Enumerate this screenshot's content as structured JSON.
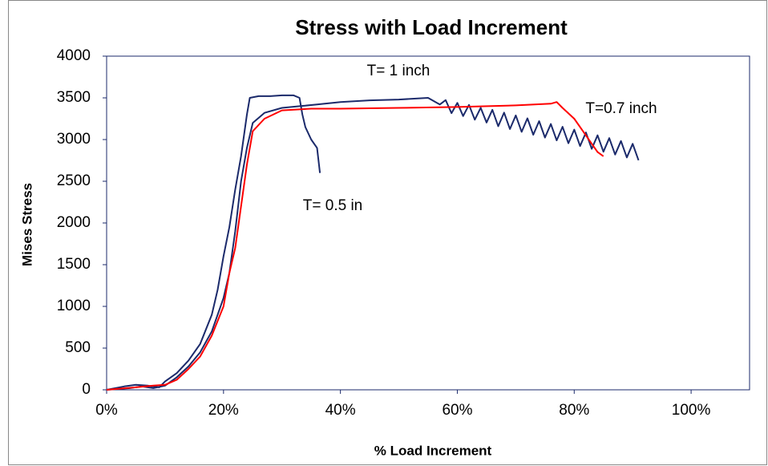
{
  "chart_data": {
    "type": "line",
    "title": "Stress with Load Increment",
    "x_label": "% Load Increment",
    "y_label": "Mises Stress",
    "xlim": [
      0,
      110
    ],
    "ylim": [
      0,
      4000
    ],
    "xticks": [
      {
        "value": 0,
        "label": "0%"
      },
      {
        "value": 20,
        "label": "20%"
      },
      {
        "value": 40,
        "label": "40%"
      },
      {
        "value": 60,
        "label": "60%"
      },
      {
        "value": 80,
        "label": "80%"
      },
      {
        "value": 100,
        "label": "100%"
      }
    ],
    "yticks": [
      0,
      500,
      1000,
      1500,
      2000,
      2500,
      3000,
      3500,
      4000
    ],
    "grid": false,
    "series": [
      {
        "name": "T= 0.5 in",
        "color": "#1b2a6b",
        "x": [
          0,
          3,
          5,
          7,
          9,
          10,
          12,
          14,
          16,
          18,
          19,
          20,
          21,
          22,
          23,
          24,
          24.5,
          26,
          28,
          30,
          32,
          33,
          33.5,
          34,
          35,
          36,
          36.5
        ],
        "values": [
          0,
          40,
          60,
          50,
          30,
          100,
          200,
          350,
          550,
          900,
          1200,
          1600,
          1950,
          2400,
          2800,
          3300,
          3500,
          3520,
          3520,
          3530,
          3530,
          3500,
          3300,
          3150,
          3000,
          2900,
          2600
        ]
      },
      {
        "name": "T= 1 inch",
        "color": "#1b2a6b",
        "x": [
          0,
          4,
          6,
          8,
          10,
          12,
          14,
          16,
          18,
          20,
          21,
          22,
          23,
          24,
          25,
          27,
          30,
          33,
          36,
          40,
          45,
          50,
          55,
          57,
          58,
          59,
          60,
          61,
          62,
          63,
          64,
          65,
          66,
          67,
          68,
          69,
          70,
          71,
          72,
          73,
          74,
          75,
          76,
          77,
          78,
          79,
          80,
          81,
          82,
          83,
          84,
          85,
          86,
          87,
          88,
          89,
          90,
          91
        ],
        "values": [
          0,
          20,
          40,
          20,
          50,
          150,
          280,
          450,
          700,
          1100,
          1400,
          1900,
          2500,
          2900,
          3200,
          3320,
          3380,
          3400,
          3420,
          3450,
          3470,
          3480,
          3500,
          3420,
          3473,
          3316,
          3439,
          3282,
          3415,
          3238,
          3381,
          3204,
          3357,
          3160,
          3323,
          3126,
          3289,
          3092,
          3255,
          3058,
          3221,
          3024,
          3187,
          2990,
          3153,
          2956,
          3119,
          2922,
          3085,
          2888,
          3051,
          2854,
          3017,
          2820,
          2983,
          2786,
          2949,
          2752
        ]
      },
      {
        "name": "T=0.7 inch",
        "color": "#ff0000",
        "x": [
          0,
          5,
          8,
          10,
          12,
          14,
          16,
          18,
          20,
          21,
          22,
          23,
          24,
          25,
          27,
          30,
          35,
          40,
          50,
          60,
          70,
          76,
          77,
          78,
          80,
          82,
          83,
          84,
          85
        ],
        "values": [
          0,
          30,
          50,
          60,
          120,
          250,
          400,
          650,
          1000,
          1400,
          1700,
          2200,
          2700,
          3100,
          3250,
          3350,
          3370,
          3370,
          3380,
          3390,
          3410,
          3430,
          3450,
          3380,
          3250,
          3050,
          2950,
          2850,
          2800
        ]
      }
    ]
  }
}
